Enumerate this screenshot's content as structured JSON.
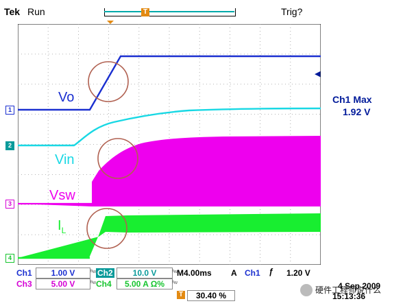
{
  "header": {
    "brand": "Tek",
    "run_state": "Run",
    "trigger_state": "Trig?",
    "trigger_marker": "T"
  },
  "right_panel": {
    "measure_label": "Ch1 Max",
    "measure_value": "1.92 V",
    "ch1_ref_glyph": "◀"
  },
  "channel_markers": [
    {
      "id": "1",
      "color": "#1a2fd0"
    },
    {
      "id": "2",
      "color": "#0a9a9a"
    },
    {
      "id": "3",
      "color": "#d400d4"
    },
    {
      "id": "4",
      "color": "#16c42e"
    }
  ],
  "waveform_labels": {
    "vo": "Vo",
    "vin": "Vin",
    "vsw": "Vsw",
    "il_main": "I",
    "il_sub": "L"
  },
  "colors": {
    "ch1": "#1a2fd0",
    "ch2": "#18d8e4",
    "ch3": "#ee00ee",
    "ch4": "#18ee30",
    "grid": "#9a9a9a",
    "annotation": "#b06050"
  },
  "status_bar": {
    "ch1_label": "Ch1",
    "ch1_scale": "1.00 V",
    "ch2_label": "Ch2",
    "ch2_scale": "10.0 V",
    "ch3_label": "Ch3",
    "ch3_scale": "5.00 V",
    "ch4_label": "Ch4",
    "ch4_scale": "5.00 A Ω%",
    "bw_mark": "ᴮw",
    "timebase_prefix": "M",
    "timebase": "4.00ms",
    "trigger_mode": "A",
    "trigger_source": "Ch1",
    "trigger_slope": "ƒ",
    "trigger_level": "1.20 V",
    "trigger_position_marker": "T",
    "trigger_position": "30.40 %",
    "date": "4 Sep  2009",
    "time": "15:13:36",
    "watermark": "硬件工程师说什么"
  }
}
